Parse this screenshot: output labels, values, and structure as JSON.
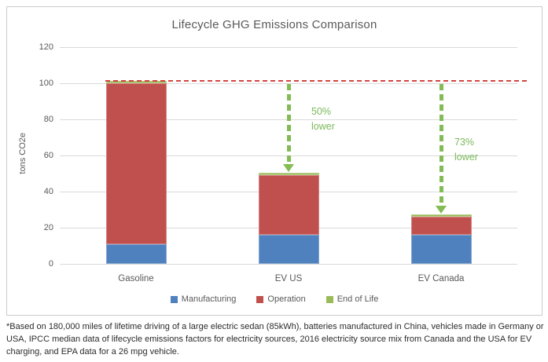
{
  "chart_data": {
    "type": "bar",
    "stacked": true,
    "title": "Lifecycle GHG Emissions Comparison",
    "xlabel": "",
    "ylabel": "tons CO2e",
    "categories": [
      "Gasoline",
      "EV US",
      "EV Canada"
    ],
    "series": [
      {
        "name": "Manufacturing",
        "color": "#4E81BD",
        "values": [
          11,
          16,
          16
        ]
      },
      {
        "name": "Operation",
        "color": "#C0504D",
        "values": [
          89,
          33,
          10
        ]
      },
      {
        "name": "End of Life",
        "color": "#9BBB59",
        "values": [
          1.5,
          1.5,
          1.5
        ]
      }
    ],
    "totals": [
      101.5,
      50.5,
      27.5
    ],
    "ylim": [
      0,
      120
    ],
    "yticks": [
      0,
      20,
      40,
      60,
      80,
      100,
      120
    ],
    "grid": true,
    "legend_position": "bottom",
    "reference_line": {
      "value": 101.5,
      "color": "#D34640",
      "style": "dashed"
    },
    "annotations": [
      {
        "text": "50% lower",
        "category": "EV US",
        "color": "#7AB95A",
        "arrow": true
      },
      {
        "text": "73% lower",
        "category": "EV Canada",
        "color": "#7AB95A",
        "arrow": true
      }
    ],
    "colors": {
      "grid": "#D9D9D9",
      "axis_text": "#595959",
      "title_text": "#595959",
      "arrow_green": "#83BB54",
      "reference_red": "#D34640"
    }
  },
  "footnote": "*Based on 180,000 miles of lifetime driving of a large electric sedan (85kWh), batteries manufactured in China, vehicles made in Germany or USA, IPCC median data of lifecycle emissions factors for electricity sources, 2016 electricity source mix from Canada and the USA for EV charging, and EPA data for a 26 mpg vehicle."
}
